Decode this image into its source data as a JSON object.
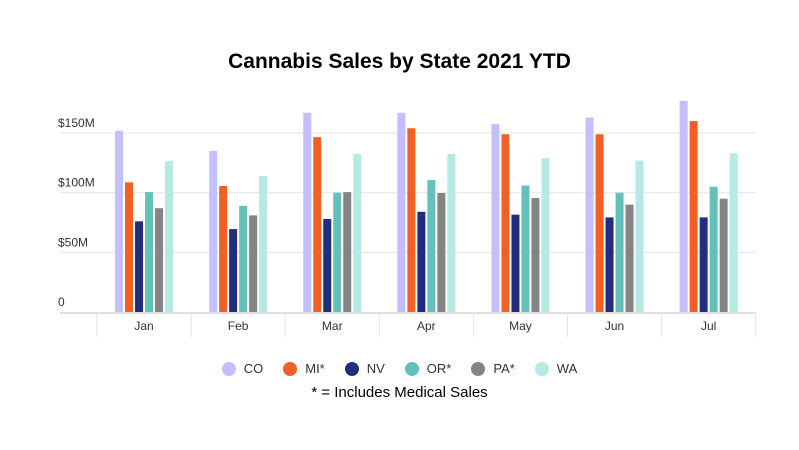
{
  "chart_data": {
    "type": "bar",
    "title": "Cannabis Sales by State 2021 YTD",
    "categories": [
      "Jan",
      "Feb",
      "Mar",
      "Apr",
      "May",
      "Jun",
      "Jul"
    ],
    "yticks": [
      {
        "value": 0,
        "label": "0"
      },
      {
        "value": 50,
        "label": "$50M"
      },
      {
        "value": 100,
        "label": "$100M"
      },
      {
        "value": 150,
        "label": "$150M"
      }
    ],
    "ylim": [
      0,
      180
    ],
    "yunit": "$M",
    "grid": true,
    "legend_position": "bottom",
    "series": [
      {
        "name": "CO",
        "color": "#c4bffe",
        "values": [
          152,
          135,
          167,
          167,
          157.5,
          163,
          177
        ]
      },
      {
        "name": "MI*",
        "color": "#f26024",
        "values": [
          108.7,
          105.6,
          146.6,
          154,
          149,
          149,
          160
        ]
      },
      {
        "name": "NV",
        "color": "#232d7e",
        "values": [
          76,
          69.5,
          78,
          84,
          81.6,
          79.3,
          79.3
        ]
      },
      {
        "name": "OR*",
        "color": "#62c2bb",
        "values": [
          100.5,
          89,
          100,
          110.6,
          106,
          100,
          105
        ]
      },
      {
        "name": "PA*",
        "color": "#848484",
        "values": [
          87,
          81,
          100.5,
          99.7,
          95.5,
          90,
          95
        ]
      },
      {
        "name": "WA",
        "color": "#b5e9e3",
        "values": [
          126.5,
          114,
          132.4,
          132.4,
          129,
          127,
          133
        ]
      }
    ],
    "note": "* = Includes Medical Sales"
  }
}
